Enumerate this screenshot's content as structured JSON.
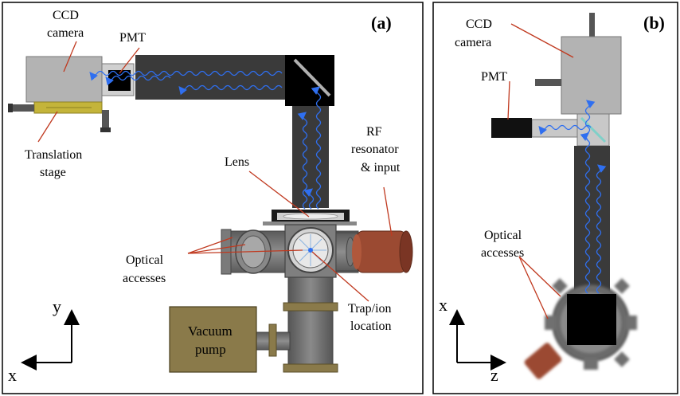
{
  "panel_a": {
    "tag": "(a)",
    "ccd_line1": "CCD",
    "ccd_line2": "camera",
    "pmt": "PMT",
    "translation_line1": "Translation",
    "translation_line2": "stage",
    "lens": "Lens",
    "rf_line1": "RF",
    "rf_line2": "resonator",
    "rf_line3": "& input",
    "optical_line1": "Optical",
    "optical_line2": "accesses",
    "trap_line1": "Trap/ion",
    "trap_line2": "location",
    "vacuum_line1": "Vacuum",
    "vacuum_line2": "pump",
    "axis_y": "y",
    "axis_x": "x"
  },
  "panel_b": {
    "tag": "(b)",
    "ccd_line1": "CCD",
    "ccd_line2": "camera",
    "pmt": "PMT",
    "optical_line1": "Optical",
    "optical_line2": "accesses",
    "axis_x": "x",
    "axis_z": "z"
  },
  "colors": {
    "tube": "#3a3a3a",
    "camera": "#b3b3b3",
    "stage": "#c4b43a",
    "pump": "#8a7a4a",
    "rf": "#9b4a32",
    "chamber": "#707070",
    "photon": "#2f6ff0",
    "leader": "#c0391f"
  }
}
